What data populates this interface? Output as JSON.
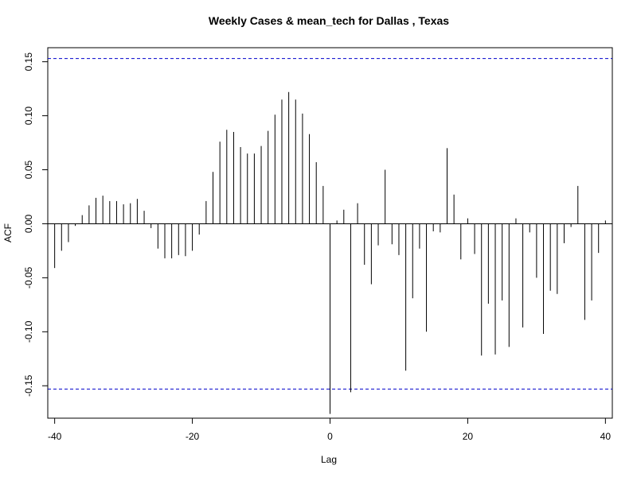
{
  "chart_data": {
    "type": "bar",
    "title": "Weekly Cases & mean_tech for Dallas , Texas",
    "xlabel": "Lag",
    "ylabel": "ACF",
    "xlim": [
      -41,
      41
    ],
    "ylim": [
      -0.18,
      0.163
    ],
    "xticks": [
      -40,
      -20,
      0,
      20,
      40
    ],
    "xtick_labels": [
      "-40",
      "-20",
      "0",
      "20",
      "40"
    ],
    "yticks": [
      -0.15,
      -0.1,
      -0.05,
      0.0,
      0.05,
      0.1,
      0.15
    ],
    "ytick_labels": [
      "-0.15",
      "-0.10",
      "-0.05",
      "0.00",
      "0.05",
      "0.10",
      "0.15"
    ],
    "confidence_bound": 0.153,
    "confidence_color": "#0000cc",
    "zero_line": true,
    "grid": false,
    "lags": [
      -40,
      -39,
      -38,
      -37,
      -36,
      -35,
      -34,
      -33,
      -32,
      -31,
      -30,
      -29,
      -28,
      -27,
      -26,
      -25,
      -24,
      -23,
      -22,
      -21,
      -20,
      -19,
      -18,
      -17,
      -16,
      -15,
      -14,
      -13,
      -12,
      -11,
      -10,
      -9,
      -8,
      -7,
      -6,
      -5,
      -4,
      -3,
      -2,
      -1,
      0,
      1,
      2,
      3,
      4,
      5,
      6,
      7,
      8,
      9,
      10,
      11,
      12,
      13,
      14,
      15,
      16,
      17,
      18,
      19,
      20,
      21,
      22,
      23,
      24,
      25,
      26,
      27,
      28,
      29,
      30,
      31,
      32,
      33,
      34,
      35,
      36,
      37,
      38,
      39,
      40
    ],
    "acf": [
      -0.041,
      -0.025,
      -0.017,
      -0.002,
      0.008,
      0.017,
      0.024,
      0.026,
      0.021,
      0.021,
      0.018,
      0.019,
      0.023,
      0.012,
      -0.004,
      -0.023,
      -0.032,
      -0.032,
      -0.029,
      -0.03,
      -0.025,
      -0.01,
      0.021,
      0.048,
      0.076,
      0.087,
      0.085,
      0.071,
      0.065,
      0.065,
      0.072,
      0.086,
      0.101,
      0.115,
      0.122,
      0.115,
      0.102,
      0.083,
      0.057,
      0.035,
      -0.176,
      0.003,
      0.013,
      -0.156,
      0.019,
      -0.038,
      -0.056,
      -0.02,
      0.05,
      -0.019,
      -0.029,
      -0.136,
      -0.069,
      -0.023,
      -0.1,
      -0.007,
      -0.008,
      0.07,
      0.027,
      -0.033,
      0.005,
      -0.028,
      -0.122,
      -0.074,
      -0.121,
      -0.071,
      -0.114,
      0.005,
      -0.096,
      -0.008,
      -0.05,
      -0.102,
      -0.062,
      -0.065,
      -0.018,
      -0.003,
      0.035,
      -0.089,
      -0.071,
      -0.027,
      0.003
    ]
  }
}
